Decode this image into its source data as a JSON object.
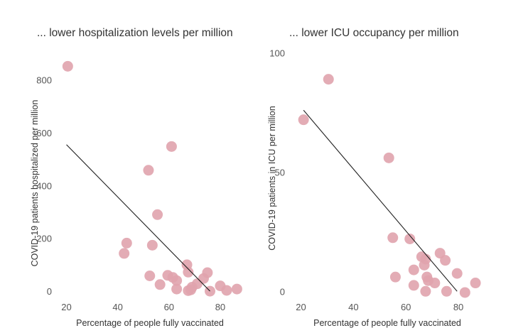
{
  "chart_data": [
    {
      "type": "scatter",
      "title": "... lower hospitalization levels per million",
      "xlabel": "Percentage of people fully vaccinated",
      "ylabel": "COVID-19 patients hospitalized per million",
      "xlim": [
        15,
        90
      ],
      "ylim": [
        -20,
        900
      ],
      "x_ticks": [
        "20",
        "40",
        "60",
        "80"
      ],
      "x_tick_values": [
        20,
        40,
        60,
        80
      ],
      "y_ticks": [
        "0",
        "200",
        "400",
        "600",
        "800"
      ],
      "y_tick_values": [
        0,
        200,
        400,
        600,
        800
      ],
      "grid": false,
      "point_color": "#e0a3ad",
      "trend_color": "#222222",
      "trendline": [
        [
          20,
          555
        ],
        [
          76,
          0
        ]
      ],
      "points": [
        {
          "x": 20.5,
          "y": 852
        },
        {
          "x": 61,
          "y": 548
        },
        {
          "x": 52,
          "y": 458
        },
        {
          "x": 55.5,
          "y": 290
        },
        {
          "x": 43.5,
          "y": 182
        },
        {
          "x": 53.5,
          "y": 174
        },
        {
          "x": 42.5,
          "y": 143
        },
        {
          "x": 67,
          "y": 100
        },
        {
          "x": 67.5,
          "y": 72
        },
        {
          "x": 75,
          "y": 70
        },
        {
          "x": 52.5,
          "y": 58
        },
        {
          "x": 59.5,
          "y": 60
        },
        {
          "x": 61.5,
          "y": 52
        },
        {
          "x": 63,
          "y": 40
        },
        {
          "x": 73.5,
          "y": 48
        },
        {
          "x": 56.5,
          "y": 25
        },
        {
          "x": 71,
          "y": 28
        },
        {
          "x": 63,
          "y": 8
        },
        {
          "x": 69,
          "y": 15
        },
        {
          "x": 67.5,
          "y": 2
        },
        {
          "x": 68.5,
          "y": 5
        },
        {
          "x": 80,
          "y": 20
        },
        {
          "x": 82.5,
          "y": 3
        },
        {
          "x": 76,
          "y": 0
        },
        {
          "x": 86.5,
          "y": 8
        }
      ]
    },
    {
      "type": "scatter",
      "title": "... lower ICU occupancy per million",
      "xlabel": "Percentage of people fully vaccinated",
      "ylabel": "COVID-19 patients in ICU per million",
      "xlim": [
        15,
        90
      ],
      "ylim": [
        -2,
        102
      ],
      "x_ticks": [
        "20",
        "40",
        "60",
        "80"
      ],
      "x_tick_values": [
        20,
        40,
        60,
        80
      ],
      "y_ticks": [
        "0",
        "50",
        "100"
      ],
      "y_tick_values": [
        0,
        50,
        100
      ],
      "grid": false,
      "point_color": "#e0a3ad",
      "trend_color": "#222222",
      "trendline": [
        [
          21,
          76
        ],
        [
          79.5,
          0
        ]
      ],
      "points": [
        {
          "x": 30.5,
          "y": 89
        },
        {
          "x": 21,
          "y": 72
        },
        {
          "x": 53.5,
          "y": 56
        },
        {
          "x": 55,
          "y": 22.5
        },
        {
          "x": 61.5,
          "y": 22
        },
        {
          "x": 66,
          "y": 14.5
        },
        {
          "x": 67.5,
          "y": 13.5
        },
        {
          "x": 73,
          "y": 16
        },
        {
          "x": 75,
          "y": 13
        },
        {
          "x": 67,
          "y": 11
        },
        {
          "x": 63,
          "y": 9
        },
        {
          "x": 56,
          "y": 6
        },
        {
          "x": 68,
          "y": 6
        },
        {
          "x": 68.5,
          "y": 4.5
        },
        {
          "x": 71,
          "y": 3.5
        },
        {
          "x": 79.5,
          "y": 7.5
        },
        {
          "x": 63,
          "y": 2.5
        },
        {
          "x": 67.5,
          "y": 0
        },
        {
          "x": 75.5,
          "y": 0
        },
        {
          "x": 82.5,
          "y": -0.5
        },
        {
          "x": 86.5,
          "y": 3.5
        }
      ]
    }
  ]
}
